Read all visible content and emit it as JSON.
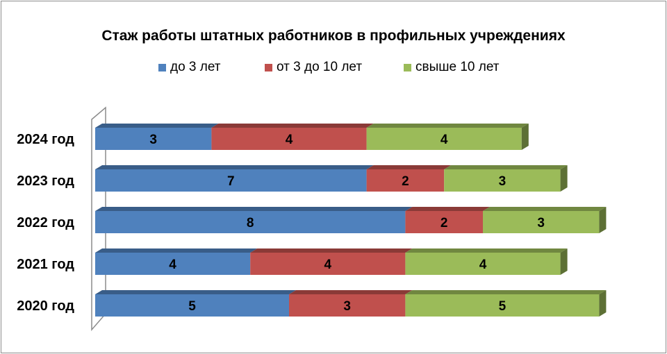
{
  "chart_data": {
    "type": "bar",
    "orientation": "horizontal",
    "stacked": true,
    "title": "Стаж работы  штатных работников  в профильных учреждениях",
    "categories": [
      "2024 год",
      "2023 год",
      "2022 год",
      "2021 год",
      "2020 год"
    ],
    "series": [
      {
        "name": "до  3 лет",
        "color": "#4f81bd",
        "values": [
          3,
          7,
          8,
          4,
          5
        ]
      },
      {
        "name": "от 3 до 10 лет",
        "color": "#c0504d",
        "values": [
          4,
          2,
          2,
          4,
          3
        ]
      },
      {
        "name": "свыше 10 лет",
        "color": "#9bbb59",
        "values": [
          4,
          3,
          3,
          4,
          5
        ]
      }
    ],
    "legend_position": "top",
    "grid": false,
    "xlim": [
      0,
      13
    ]
  }
}
